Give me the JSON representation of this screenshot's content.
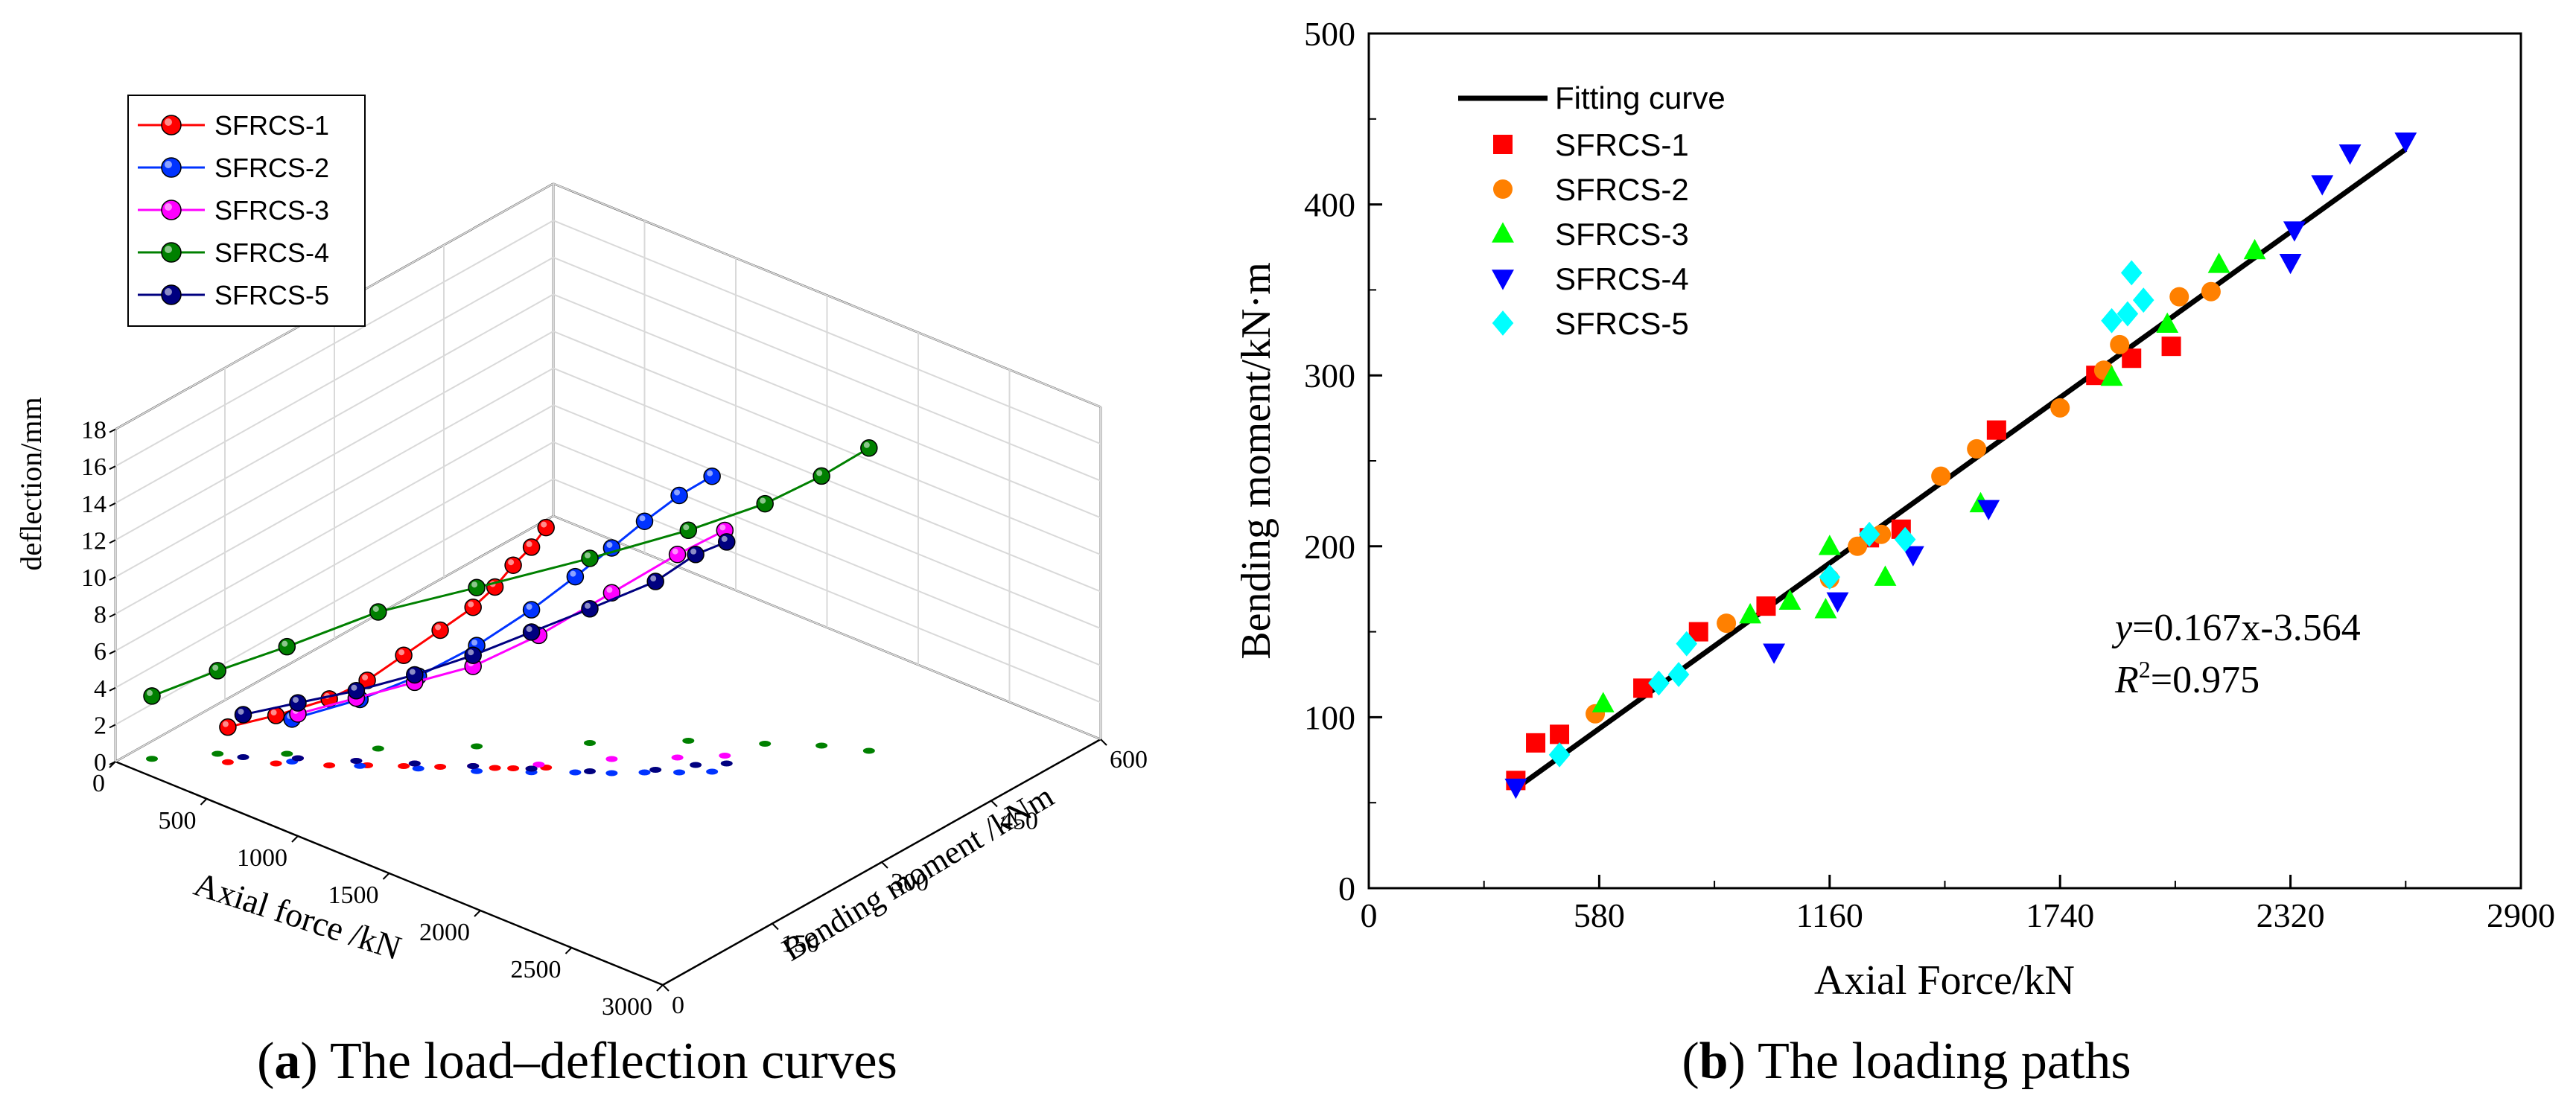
{
  "panel_a": {
    "caption_letter": "a",
    "caption_text": "The load–deflection curves",
    "axis_axial": "Axial force /kN",
    "axis_moment": "Bending moment /kNm",
    "axis_deflection": "deflection/mm",
    "axial_ticks": [
      "0",
      "500",
      "1000",
      "1500",
      "2000",
      "2500",
      "3000"
    ],
    "moment_ticks": [
      "0",
      "150",
      "300",
      "450",
      "600"
    ],
    "deflection_ticks": [
      "0",
      "2",
      "4",
      "6",
      "8",
      "10",
      "12",
      "14",
      "16",
      "18"
    ]
  },
  "panel_b": {
    "caption_letter": "b",
    "caption_text": "The loading paths",
    "xlabel": "Axial Force/kN",
    "ylabel": "Bending moment/kN·m",
    "xticks": [
      "0",
      "580",
      "1160",
      "1740",
      "2320",
      "2900"
    ],
    "yticks": [
      "0",
      "100",
      "200",
      "300",
      "400",
      "500"
    ],
    "fit_legend": "Fitting curve",
    "equation_y": "y",
    "equation_rest": "=0.167x-3.564",
    "r2_r": "R",
    "r2_sup": "2",
    "r2_value": "=0.975"
  },
  "chart_data": [
    {
      "type": "line",
      "title": "The load–deflection curves",
      "projection": "3d",
      "xlabel": "Axial force /kN",
      "ylabel": "Bending moment /kNm",
      "zlabel": "deflection/mm",
      "xlim": [
        0,
        3000
      ],
      "ylim": [
        0,
        600
      ],
      "zlim": [
        0,
        18
      ],
      "series": [
        {
          "name": "SFRCS-1",
          "color": "#ff0000",
          "points": [
            [
              360,
              64,
              1.9
            ],
            [
              520,
              90,
              2.6
            ],
            [
              700,
              118,
              3.6
            ],
            [
              820,
              140,
              4.6
            ],
            [
              940,
              160,
              6.0
            ],
            [
              1060,
              180,
              7.4
            ],
            [
              1160,
              200,
              8.6
            ],
            [
              1240,
              210,
              9.8
            ],
            [
              1300,
              220,
              11.0
            ],
            [
              1360,
              230,
              12.0
            ],
            [
              1400,
              240,
              13.0
            ]
          ]
        },
        {
          "name": "SFRCS-2",
          "color": "#0033ff",
          "points": [
            [
              560,
              102,
              2.3
            ],
            [
              800,
              135,
              3.6
            ],
            [
              1000,
              165,
              5.0
            ],
            [
              1200,
              195,
              6.8
            ],
            [
              1380,
              225,
              8.8
            ],
            [
              1520,
              250,
              10.6
            ],
            [
              1640,
              270,
              12.2
            ],
            [
              1740,
              290,
              13.6
            ],
            [
              1850,
              310,
              15.0
            ],
            [
              1950,
              330,
              16.0
            ]
          ]
        },
        {
          "name": "SFRCS-3",
          "color": "#ff00ff",
          "points": [
            [
              560,
              110,
              2.4
            ],
            [
              760,
              140,
              3.4
            ],
            [
              960,
              170,
              4.4
            ],
            [
              1160,
              200,
              5.4
            ],
            [
              1360,
              240,
              7.0
            ],
            [
              1560,
              290,
              9.0
            ],
            [
              1760,
              330,
              11.0
            ],
            [
              1900,
              360,
              12.2
            ]
          ]
        },
        {
          "name": "SFRCS-4",
          "color": "#008000",
          "points": [
            [
              100,
              25,
              3.4
            ],
            [
              280,
              70,
              4.5
            ],
            [
              500,
              110,
              5.8
            ],
            [
              760,
              170,
              7.4
            ],
            [
              1060,
              230,
              8.6
            ],
            [
              1400,
              300,
              10.0
            ],
            [
              1700,
              360,
              11.4
            ],
            [
              1960,
              400,
              13.0
            ],
            [
              2150,
              430,
              14.6
            ],
            [
              2330,
              450,
              16.4
            ]
          ]
        },
        {
          "name": "SFRCS-5",
          "color": "#000080",
          "points": [
            [
              380,
              80,
              2.3
            ],
            [
              560,
              110,
              3.0
            ],
            [
              760,
              140,
              3.8
            ],
            [
              960,
              170,
              4.8
            ],
            [
              1160,
              200,
              6.0
            ],
            [
              1360,
              230,
              7.4
            ],
            [
              1560,
              260,
              8.8
            ],
            [
              1760,
              300,
              10.2
            ],
            [
              1860,
              330,
              11.4
            ],
            [
              1950,
              350,
              12.0
            ]
          ]
        }
      ],
      "axial_ticks": [
        0,
        500,
        1000,
        1500,
        2000,
        2500,
        3000
      ],
      "moment_ticks": [
        0,
        150,
        300,
        450,
        600
      ],
      "deflection_ticks": [
        0,
        2,
        4,
        6,
        8,
        10,
        12,
        14,
        16,
        18
      ],
      "legend": "top-left"
    },
    {
      "type": "scatter",
      "title": "The loading paths",
      "xlabel": "Axial Force/kN",
      "ylabel": "Bending moment/kN·m",
      "xlim": [
        0,
        2900
      ],
      "ylim": [
        0,
        500
      ],
      "xticks": [
        0,
        580,
        1160,
        1740,
        2320,
        2900
      ],
      "yticks": [
        0,
        100,
        200,
        300,
        400,
        500
      ],
      "fit": {
        "name": "Fitting curve",
        "slope": 0.167,
        "intercept": -3.564,
        "r2": 0.975,
        "x_range": [
          370,
          2610
        ]
      },
      "series": [
        {
          "name": "SFRCS-1",
          "marker": "square",
          "color": "#ff0000",
          "points": [
            [
              370,
              63
            ],
            [
              420,
              85
            ],
            [
              480,
              90
            ],
            [
              690,
              117
            ],
            [
              830,
              150
            ],
            [
              1000,
              165
            ],
            [
              1260,
              205
            ],
            [
              1340,
              210
            ],
            [
              1580,
              268
            ],
            [
              1830,
              300
            ],
            [
              1920,
              310
            ],
            [
              2020,
              317
            ]
          ]
        },
        {
          "name": "SFRCS-2",
          "marker": "circle",
          "color": "#ff8000",
          "points": [
            [
              570,
              102
            ],
            [
              900,
              155
            ],
            [
              1160,
              181
            ],
            [
              1230,
              200
            ],
            [
              1290,
              207
            ],
            [
              1440,
              241
            ],
            [
              1530,
              257
            ],
            [
              1740,
              281
            ],
            [
              1850,
              303
            ],
            [
              1890,
              318
            ],
            [
              2040,
              346
            ],
            [
              2120,
              349
            ]
          ]
        },
        {
          "name": "SFRCS-3",
          "marker": "triangle-up",
          "color": "#00ff00",
          "points": [
            [
              590,
              108
            ],
            [
              960,
              160
            ],
            [
              1060,
              168
            ],
            [
              1150,
              163
            ],
            [
              1160,
              200
            ],
            [
              1300,
              182
            ],
            [
              1540,
              225
            ],
            [
              1870,
              299
            ],
            [
              2010,
              330
            ],
            [
              2140,
              365
            ],
            [
              2230,
              373
            ]
          ]
        },
        {
          "name": "SFRCS-4",
          "marker": "triangle-down",
          "color": "#0000ff",
          "points": [
            [
              370,
              59
            ],
            [
              1020,
              138
            ],
            [
              1180,
              168
            ],
            [
              1370,
              195
            ],
            [
              1560,
              222
            ],
            [
              2320,
              366
            ],
            [
              2330,
              385
            ],
            [
              2400,
              412
            ],
            [
              2470,
              430
            ],
            [
              2610,
              437
            ]
          ]
        },
        {
          "name": "SFRCS-5",
          "marker": "diamond",
          "color": "#00ffff",
          "points": [
            [
              480,
              78
            ],
            [
              730,
              120
            ],
            [
              780,
              125
            ],
            [
              800,
              143
            ],
            [
              1160,
              182
            ],
            [
              1260,
              207
            ],
            [
              1350,
              204
            ],
            [
              1870,
              332
            ],
            [
              1910,
              336
            ],
            [
              1920,
              360
            ],
            [
              1950,
              344
            ]
          ]
        }
      ],
      "annotation": "y=0.167x-3.564, R2=0.975",
      "legend": "top-left"
    }
  ]
}
